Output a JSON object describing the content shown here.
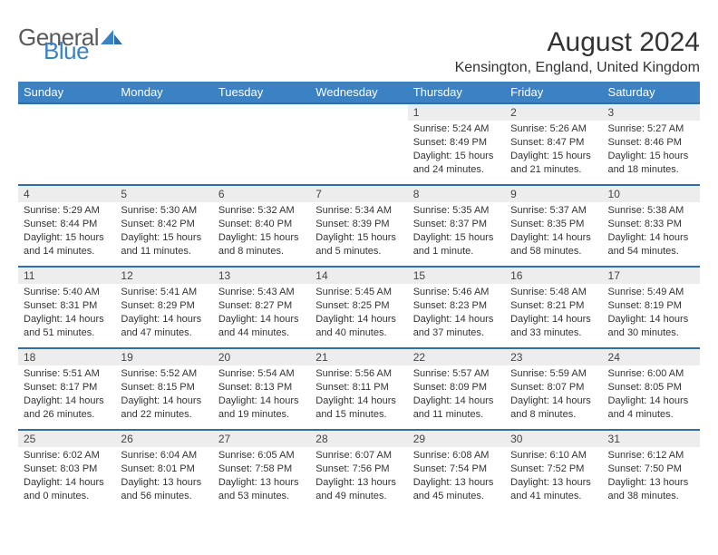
{
  "brand": {
    "part1": "General",
    "part2": "Blue",
    "color_gray": "#5a5a5a",
    "color_blue": "#3b82c4"
  },
  "title": "August 2024",
  "location": "Kensington, England, United Kingdom",
  "colors": {
    "header_bg": "#3b82c4",
    "header_text": "#ffffff",
    "row_border": "#2f6fa8",
    "daynum_bg": "#ededed",
    "text": "#333333"
  },
  "day_headers": [
    "Sunday",
    "Monday",
    "Tuesday",
    "Wednesday",
    "Thursday",
    "Friday",
    "Saturday"
  ],
  "weeks": [
    [
      null,
      null,
      null,
      null,
      {
        "n": "1",
        "sr": "Sunrise: 5:24 AM",
        "ss": "Sunset: 8:49 PM",
        "dl": "Daylight: 15 hours and 24 minutes."
      },
      {
        "n": "2",
        "sr": "Sunrise: 5:26 AM",
        "ss": "Sunset: 8:47 PM",
        "dl": "Daylight: 15 hours and 21 minutes."
      },
      {
        "n": "3",
        "sr": "Sunrise: 5:27 AM",
        "ss": "Sunset: 8:46 PM",
        "dl": "Daylight: 15 hours and 18 minutes."
      }
    ],
    [
      {
        "n": "4",
        "sr": "Sunrise: 5:29 AM",
        "ss": "Sunset: 8:44 PM",
        "dl": "Daylight: 15 hours and 14 minutes."
      },
      {
        "n": "5",
        "sr": "Sunrise: 5:30 AM",
        "ss": "Sunset: 8:42 PM",
        "dl": "Daylight: 15 hours and 11 minutes."
      },
      {
        "n": "6",
        "sr": "Sunrise: 5:32 AM",
        "ss": "Sunset: 8:40 PM",
        "dl": "Daylight: 15 hours and 8 minutes."
      },
      {
        "n": "7",
        "sr": "Sunrise: 5:34 AM",
        "ss": "Sunset: 8:39 PM",
        "dl": "Daylight: 15 hours and 5 minutes."
      },
      {
        "n": "8",
        "sr": "Sunrise: 5:35 AM",
        "ss": "Sunset: 8:37 PM",
        "dl": "Daylight: 15 hours and 1 minute."
      },
      {
        "n": "9",
        "sr": "Sunrise: 5:37 AM",
        "ss": "Sunset: 8:35 PM",
        "dl": "Daylight: 14 hours and 58 minutes."
      },
      {
        "n": "10",
        "sr": "Sunrise: 5:38 AM",
        "ss": "Sunset: 8:33 PM",
        "dl": "Daylight: 14 hours and 54 minutes."
      }
    ],
    [
      {
        "n": "11",
        "sr": "Sunrise: 5:40 AM",
        "ss": "Sunset: 8:31 PM",
        "dl": "Daylight: 14 hours and 51 minutes."
      },
      {
        "n": "12",
        "sr": "Sunrise: 5:41 AM",
        "ss": "Sunset: 8:29 PM",
        "dl": "Daylight: 14 hours and 47 minutes."
      },
      {
        "n": "13",
        "sr": "Sunrise: 5:43 AM",
        "ss": "Sunset: 8:27 PM",
        "dl": "Daylight: 14 hours and 44 minutes."
      },
      {
        "n": "14",
        "sr": "Sunrise: 5:45 AM",
        "ss": "Sunset: 8:25 PM",
        "dl": "Daylight: 14 hours and 40 minutes."
      },
      {
        "n": "15",
        "sr": "Sunrise: 5:46 AM",
        "ss": "Sunset: 8:23 PM",
        "dl": "Daylight: 14 hours and 37 minutes."
      },
      {
        "n": "16",
        "sr": "Sunrise: 5:48 AM",
        "ss": "Sunset: 8:21 PM",
        "dl": "Daylight: 14 hours and 33 minutes."
      },
      {
        "n": "17",
        "sr": "Sunrise: 5:49 AM",
        "ss": "Sunset: 8:19 PM",
        "dl": "Daylight: 14 hours and 30 minutes."
      }
    ],
    [
      {
        "n": "18",
        "sr": "Sunrise: 5:51 AM",
        "ss": "Sunset: 8:17 PM",
        "dl": "Daylight: 14 hours and 26 minutes."
      },
      {
        "n": "19",
        "sr": "Sunrise: 5:52 AM",
        "ss": "Sunset: 8:15 PM",
        "dl": "Daylight: 14 hours and 22 minutes."
      },
      {
        "n": "20",
        "sr": "Sunrise: 5:54 AM",
        "ss": "Sunset: 8:13 PM",
        "dl": "Daylight: 14 hours and 19 minutes."
      },
      {
        "n": "21",
        "sr": "Sunrise: 5:56 AM",
        "ss": "Sunset: 8:11 PM",
        "dl": "Daylight: 14 hours and 15 minutes."
      },
      {
        "n": "22",
        "sr": "Sunrise: 5:57 AM",
        "ss": "Sunset: 8:09 PM",
        "dl": "Daylight: 14 hours and 11 minutes."
      },
      {
        "n": "23",
        "sr": "Sunrise: 5:59 AM",
        "ss": "Sunset: 8:07 PM",
        "dl": "Daylight: 14 hours and 8 minutes."
      },
      {
        "n": "24",
        "sr": "Sunrise: 6:00 AM",
        "ss": "Sunset: 8:05 PM",
        "dl": "Daylight: 14 hours and 4 minutes."
      }
    ],
    [
      {
        "n": "25",
        "sr": "Sunrise: 6:02 AM",
        "ss": "Sunset: 8:03 PM",
        "dl": "Daylight: 14 hours and 0 minutes."
      },
      {
        "n": "26",
        "sr": "Sunrise: 6:04 AM",
        "ss": "Sunset: 8:01 PM",
        "dl": "Daylight: 13 hours and 56 minutes."
      },
      {
        "n": "27",
        "sr": "Sunrise: 6:05 AM",
        "ss": "Sunset: 7:58 PM",
        "dl": "Daylight: 13 hours and 53 minutes."
      },
      {
        "n": "28",
        "sr": "Sunrise: 6:07 AM",
        "ss": "Sunset: 7:56 PM",
        "dl": "Daylight: 13 hours and 49 minutes."
      },
      {
        "n": "29",
        "sr": "Sunrise: 6:08 AM",
        "ss": "Sunset: 7:54 PM",
        "dl": "Daylight: 13 hours and 45 minutes."
      },
      {
        "n": "30",
        "sr": "Sunrise: 6:10 AM",
        "ss": "Sunset: 7:52 PM",
        "dl": "Daylight: 13 hours and 41 minutes."
      },
      {
        "n": "31",
        "sr": "Sunrise: 6:12 AM",
        "ss": "Sunset: 7:50 PM",
        "dl": "Daylight: 13 hours and 38 minutes."
      }
    ]
  ]
}
